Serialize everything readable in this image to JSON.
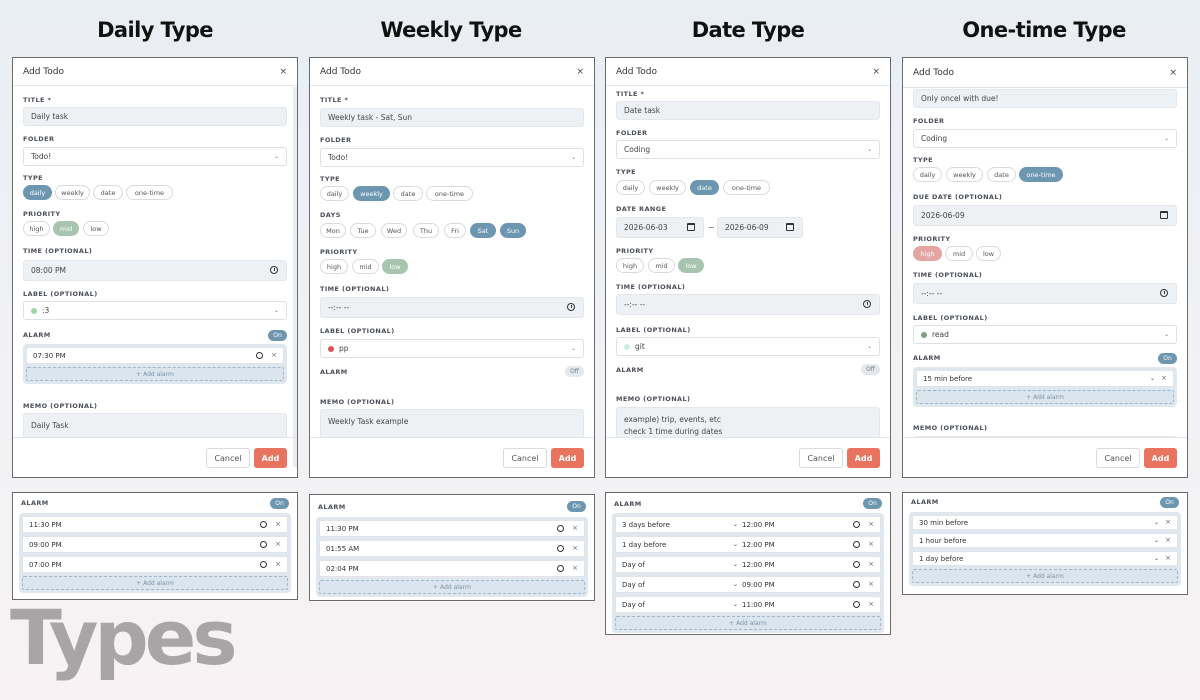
{
  "titles": [
    "Daily Type",
    "Weekly Type",
    "Date Type",
    "One-time Type"
  ],
  "big_title": "Types",
  "dialog": {
    "title": "Add Todo",
    "close": "×",
    "cancel": "Cancel",
    "add": "Add"
  },
  "labels": {
    "title": "TITLE *",
    "folder": "FOLDER",
    "type": "TYPE",
    "priority": "PRIORITY",
    "time": "TIME (OPTIONAL)",
    "label": "LABEL (OPTIONAL)",
    "alarm": "ALARM",
    "memo": "MEMO (OPTIONAL)",
    "days": "DAYS",
    "date_range": "DATE RANGE",
    "due_date": "DUE DATE (OPTIONAL)"
  },
  "type_options": [
    "daily",
    "weekly",
    "date",
    "one-time"
  ],
  "priority_options": [
    "high",
    "mid",
    "low"
  ],
  "weekdays": [
    "Mon",
    "Tue",
    "Wed",
    "Thu",
    "Fri",
    "Sat",
    "Sun"
  ],
  "toggle": {
    "on": "On",
    "off": "Off"
  },
  "add_alarm": "+ Add alarm",
  "remove": "×",
  "daily": {
    "title_value": "Daily task",
    "folder": "Todo!",
    "time": "08:00 PM",
    "label": ":3",
    "label_color": "#9fd6a6",
    "alarm": "07:30 PM",
    "memo": "Daily Task",
    "panel_alarms": [
      "11:30 PM",
      "09:00 PM",
      "07:00 PM"
    ]
  },
  "weekly": {
    "title_value": "Weekly task - Sat, Sun",
    "folder": "Todo!",
    "time": "--:-- --",
    "label": "pp",
    "label_color": "#d9534f",
    "memo": "Weekly Task example",
    "panel_alarms": [
      "11:30 PM",
      "01:55 AM",
      "02:04 PM"
    ]
  },
  "date": {
    "title_value": "Date task",
    "folder": "Coding",
    "range_start": "2026-06-03",
    "range_sep": "~",
    "range_end": "2026-06-09",
    "time": "--:-- --",
    "label": "git",
    "label_color": "#cdeee0",
    "memo_line1": "example) trip, events, etc",
    "memo_line2": "check 1 time during dates",
    "panel_alarms": [
      {
        "when": "3 days before",
        "time": "12:00 PM"
      },
      {
        "when": "1 day before",
        "time": "12:00 PM"
      },
      {
        "when": "Day of",
        "time": "12:00 PM"
      },
      {
        "when": "Day of",
        "time": "09:00 PM"
      },
      {
        "when": "Day of",
        "time": "11:00 PM"
      }
    ]
  },
  "onetime": {
    "title_value": "Only oncel with due!",
    "folder": "Coding",
    "due": "2026-06-09",
    "time": "--:-- --",
    "label": "read",
    "label_color": "#7aa07f",
    "alarm": "15 min before",
    "panel_alarms": [
      "30 min before",
      "1 hour before",
      "1 day before"
    ]
  },
  "colors": {
    "accent_blue": "#6d96b0",
    "accent_green": "#a7c5ae",
    "accent_red": "#e3a4a2",
    "add_button": "#e8735e"
  }
}
